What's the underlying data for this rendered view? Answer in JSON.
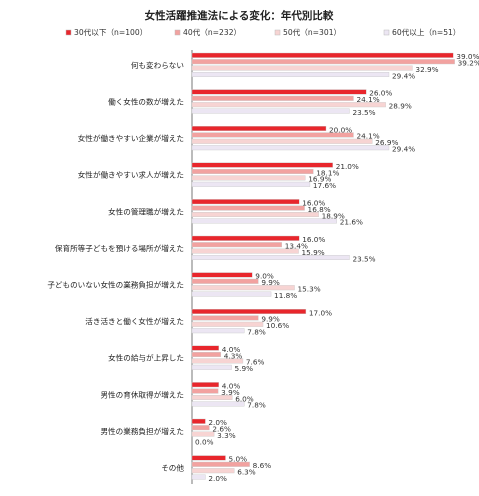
{
  "chart_data": {
    "type": "bar",
    "orientation": "horizontal",
    "title": "女性活躍推進法による変化：年代別比較",
    "legend_position": "top",
    "grid": false,
    "unit": "%",
    "xlim": [
      0,
      40
    ],
    "categories": [
      "何も変わらない",
      "働く女性の数が増えた",
      "女性が働きやすい企業が増えた",
      "女性が働きやすい求人が増えた",
      "女性の管理職が増えた",
      "保育所等子どもを預ける場所が増えた",
      "子どものいない女性の業務負担が増えた",
      "活き活きと働く女性が増えた",
      "女性の給与が上昇した",
      "男性の育休取得が増えた",
      "男性の業務負担が増えた",
      "その他"
    ],
    "series": [
      {
        "name": "30代以下（n=100）",
        "color": "#e8262c",
        "values": [
          39.0,
          26.0,
          20.0,
          21.0,
          16.0,
          16.0,
          9.0,
          17.0,
          4.0,
          4.0,
          2.0,
          5.0
        ]
      },
      {
        "name": "40代（n=232）",
        "color": "#f2a2a0",
        "values": [
          39.2,
          24.1,
          24.1,
          18.1,
          16.8,
          13.4,
          9.9,
          9.9,
          4.3,
          3.9,
          2.6,
          8.6
        ]
      },
      {
        "name": "50代（n=301）",
        "color": "#f7d4d3",
        "values": [
          32.9,
          28.9,
          26.9,
          16.9,
          18.9,
          15.9,
          15.3,
          10.6,
          7.6,
          6.0,
          3.3,
          6.3
        ]
      },
      {
        "name": "60代以上（n=51）",
        "color": "#ece6f3",
        "values": [
          29.4,
          23.5,
          29.4,
          17.6,
          21.6,
          23.5,
          11.8,
          7.8,
          5.9,
          7.8,
          0.0,
          2.0
        ]
      }
    ]
  }
}
